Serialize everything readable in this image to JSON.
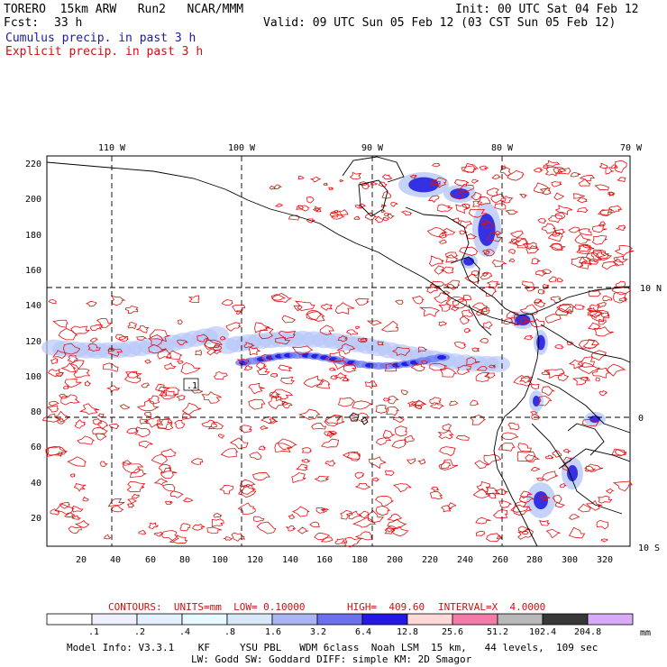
{
  "header": {
    "model_line": "TORERO  15km ARW   Run2   NCAR/MMM",
    "init": "Init: 00 UTC Sat 04 Feb 12",
    "fcst_label": "Fcst:",
    "fcst_value": "33 h",
    "valid": "Valid: 09 UTC Sun 05 Feb 12 (03 CST Sun 05 Feb 12)",
    "cumulus": "Cumulus precip. in past 3 h",
    "explicit": "Explicit precip. in past 3 h"
  },
  "map": {
    "top_lon_labels": [
      "110 W",
      "100 W",
      "90 W",
      "80 W",
      "70 W"
    ],
    "right_lat_labels": [
      "10 N",
      "0",
      "10 S"
    ],
    "left_y_ticks": [
      "220",
      "200",
      "180",
      "160",
      "140",
      "120",
      "100",
      "80",
      "60",
      "40",
      "20"
    ],
    "bottom_x_ticks": [
      "20",
      "40",
      "60",
      "80",
      "100",
      "120",
      "140",
      "160",
      "180",
      "200",
      "220",
      "240",
      "260",
      "280",
      "300",
      "320"
    ],
    "station_label": ".1",
    "colors": {
      "explicit_contour": "#e01010",
      "cumulus_light": "#b8c8f8",
      "cumulus_mid": "#6f7cf0",
      "cumulus_heavy": "#1a14e0",
      "coastline": "#000000"
    }
  },
  "contours_line": {
    "label": "CONTOURS:  UNITS=mm  LOW= 0.10000",
    "high": "HIGH=  409.60",
    "interval": "INTERVAL=X  4.0000"
  },
  "colorbar": {
    "labels": [
      ".1",
      ".2",
      ".4",
      ".8",
      "1.6",
      "3.2",
      "6.4",
      "12.8",
      "25.6",
      "51.2",
      "102.4",
      "204.8"
    ],
    "unit": "mm",
    "colors": [
      "#ffffff",
      "#eef0ff",
      "#e4f0ff",
      "#e6fbff",
      "#d8e8f8",
      "#aab6f4",
      "#6a70ee",
      "#2418e6",
      "#ffd8d8",
      "#f47aa8",
      "#b8b8b8",
      "#383838",
      "#d8aaf8"
    ]
  },
  "footer": {
    "line1": "Model Info: V3.3.1    KF     YSU PBL   WDM 6class  Noah LSM  15 km,   44 levels,  109 sec",
    "line2": "LW: Godd SW: Goddard DIFF: simple KM: 2D Smagor"
  }
}
